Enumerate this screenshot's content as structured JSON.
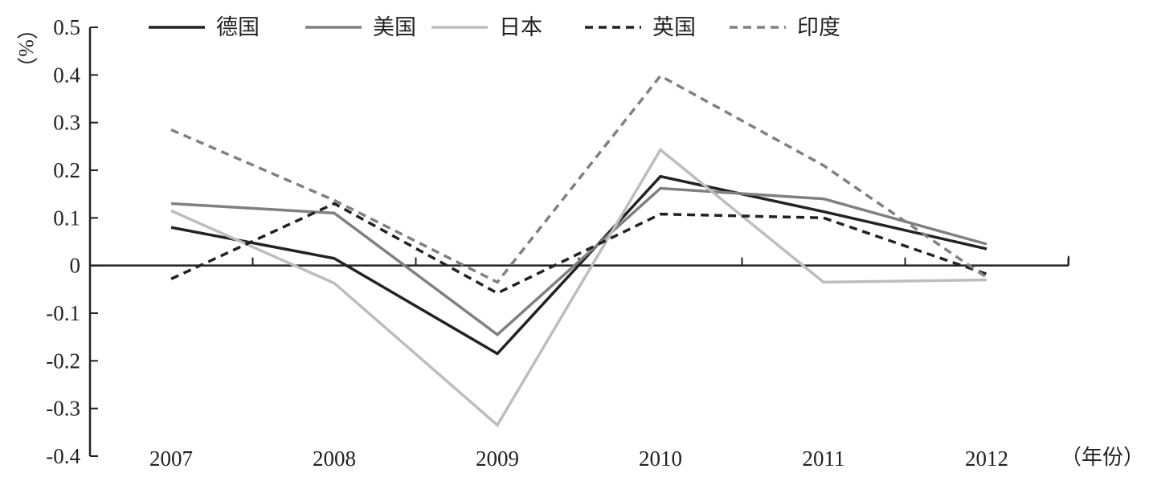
{
  "chart_data": {
    "type": "line",
    "title": "",
    "xlabel": "（年份）",
    "ylabel": "（%）",
    "categories": [
      "2007",
      "2008",
      "2009",
      "2010",
      "2011",
      "2012"
    ],
    "ylim": [
      -0.4,
      0.5
    ],
    "yticks": [
      -0.4,
      -0.3,
      -0.2,
      -0.1,
      0,
      0.1,
      0.2,
      0.3,
      0.4,
      0.5
    ],
    "ytick_labels": [
      "-0.4",
      "-0.3",
      "-0.2",
      "-0.1",
      "0",
      "0.1",
      "0.2",
      "0.3",
      "0.4",
      "0.5"
    ],
    "grid": false,
    "legend_position": "top",
    "series": [
      {
        "name": "德国",
        "values": [
          0.08,
          0.015,
          -0.185,
          0.187,
          0.113,
          0.035
        ],
        "color": "#222222",
        "dash": "solid"
      },
      {
        "name": "美国",
        "values": [
          0.13,
          0.11,
          -0.145,
          0.162,
          0.14,
          0.045
        ],
        "color": "#808080",
        "dash": "solid"
      },
      {
        "name": "日本",
        "values": [
          0.115,
          -0.037,
          -0.335,
          0.243,
          -0.035,
          -0.03
        ],
        "color": "#bdbdbd",
        "dash": "solid"
      },
      {
        "name": "英国",
        "values": [
          -0.028,
          0.13,
          -0.058,
          0.108,
          0.1,
          -0.018
        ],
        "color": "#222222",
        "dash": "dashed"
      },
      {
        "name": "印度",
        "values": [
          0.285,
          0.137,
          -0.035,
          0.398,
          0.21,
          -0.025
        ],
        "color": "#808080",
        "dash": "dashed"
      }
    ]
  }
}
